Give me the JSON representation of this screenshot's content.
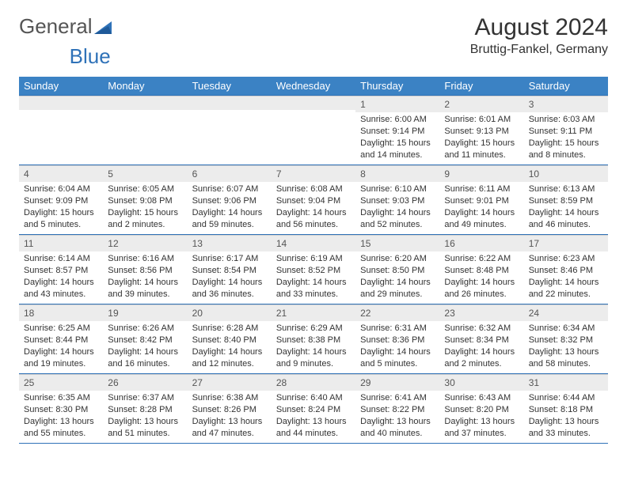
{
  "logo": {
    "text1": "General",
    "text2": "Blue"
  },
  "title": "August 2024",
  "location": "Bruttig-Fankel, Germany",
  "colors": {
    "header_bg": "#3b82c4",
    "header_text": "#ffffff",
    "daynum_bg": "#ececec",
    "border": "#2f72b8",
    "body_text": "#333333",
    "logo_gray": "#555555",
    "logo_blue": "#2f72b8"
  },
  "day_labels": [
    "Sunday",
    "Monday",
    "Tuesday",
    "Wednesday",
    "Thursday",
    "Friday",
    "Saturday"
  ],
  "weeks": [
    [
      {
        "n": "",
        "sr": "",
        "ss": "",
        "dl": ""
      },
      {
        "n": "",
        "sr": "",
        "ss": "",
        "dl": ""
      },
      {
        "n": "",
        "sr": "",
        "ss": "",
        "dl": ""
      },
      {
        "n": "",
        "sr": "",
        "ss": "",
        "dl": ""
      },
      {
        "n": "1",
        "sr": "Sunrise: 6:00 AM",
        "ss": "Sunset: 9:14 PM",
        "dl": "Daylight: 15 hours and 14 minutes."
      },
      {
        "n": "2",
        "sr": "Sunrise: 6:01 AM",
        "ss": "Sunset: 9:13 PM",
        "dl": "Daylight: 15 hours and 11 minutes."
      },
      {
        "n": "3",
        "sr": "Sunrise: 6:03 AM",
        "ss": "Sunset: 9:11 PM",
        "dl": "Daylight: 15 hours and 8 minutes."
      }
    ],
    [
      {
        "n": "4",
        "sr": "Sunrise: 6:04 AM",
        "ss": "Sunset: 9:09 PM",
        "dl": "Daylight: 15 hours and 5 minutes."
      },
      {
        "n": "5",
        "sr": "Sunrise: 6:05 AM",
        "ss": "Sunset: 9:08 PM",
        "dl": "Daylight: 15 hours and 2 minutes."
      },
      {
        "n": "6",
        "sr": "Sunrise: 6:07 AM",
        "ss": "Sunset: 9:06 PM",
        "dl": "Daylight: 14 hours and 59 minutes."
      },
      {
        "n": "7",
        "sr": "Sunrise: 6:08 AM",
        "ss": "Sunset: 9:04 PM",
        "dl": "Daylight: 14 hours and 56 minutes."
      },
      {
        "n": "8",
        "sr": "Sunrise: 6:10 AM",
        "ss": "Sunset: 9:03 PM",
        "dl": "Daylight: 14 hours and 52 minutes."
      },
      {
        "n": "9",
        "sr": "Sunrise: 6:11 AM",
        "ss": "Sunset: 9:01 PM",
        "dl": "Daylight: 14 hours and 49 minutes."
      },
      {
        "n": "10",
        "sr": "Sunrise: 6:13 AM",
        "ss": "Sunset: 8:59 PM",
        "dl": "Daylight: 14 hours and 46 minutes."
      }
    ],
    [
      {
        "n": "11",
        "sr": "Sunrise: 6:14 AM",
        "ss": "Sunset: 8:57 PM",
        "dl": "Daylight: 14 hours and 43 minutes."
      },
      {
        "n": "12",
        "sr": "Sunrise: 6:16 AM",
        "ss": "Sunset: 8:56 PM",
        "dl": "Daylight: 14 hours and 39 minutes."
      },
      {
        "n": "13",
        "sr": "Sunrise: 6:17 AM",
        "ss": "Sunset: 8:54 PM",
        "dl": "Daylight: 14 hours and 36 minutes."
      },
      {
        "n": "14",
        "sr": "Sunrise: 6:19 AM",
        "ss": "Sunset: 8:52 PM",
        "dl": "Daylight: 14 hours and 33 minutes."
      },
      {
        "n": "15",
        "sr": "Sunrise: 6:20 AM",
        "ss": "Sunset: 8:50 PM",
        "dl": "Daylight: 14 hours and 29 minutes."
      },
      {
        "n": "16",
        "sr": "Sunrise: 6:22 AM",
        "ss": "Sunset: 8:48 PM",
        "dl": "Daylight: 14 hours and 26 minutes."
      },
      {
        "n": "17",
        "sr": "Sunrise: 6:23 AM",
        "ss": "Sunset: 8:46 PM",
        "dl": "Daylight: 14 hours and 22 minutes."
      }
    ],
    [
      {
        "n": "18",
        "sr": "Sunrise: 6:25 AM",
        "ss": "Sunset: 8:44 PM",
        "dl": "Daylight: 14 hours and 19 minutes."
      },
      {
        "n": "19",
        "sr": "Sunrise: 6:26 AM",
        "ss": "Sunset: 8:42 PM",
        "dl": "Daylight: 14 hours and 16 minutes."
      },
      {
        "n": "20",
        "sr": "Sunrise: 6:28 AM",
        "ss": "Sunset: 8:40 PM",
        "dl": "Daylight: 14 hours and 12 minutes."
      },
      {
        "n": "21",
        "sr": "Sunrise: 6:29 AM",
        "ss": "Sunset: 8:38 PM",
        "dl": "Daylight: 14 hours and 9 minutes."
      },
      {
        "n": "22",
        "sr": "Sunrise: 6:31 AM",
        "ss": "Sunset: 8:36 PM",
        "dl": "Daylight: 14 hours and 5 minutes."
      },
      {
        "n": "23",
        "sr": "Sunrise: 6:32 AM",
        "ss": "Sunset: 8:34 PM",
        "dl": "Daylight: 14 hours and 2 minutes."
      },
      {
        "n": "24",
        "sr": "Sunrise: 6:34 AM",
        "ss": "Sunset: 8:32 PM",
        "dl": "Daylight: 13 hours and 58 minutes."
      }
    ],
    [
      {
        "n": "25",
        "sr": "Sunrise: 6:35 AM",
        "ss": "Sunset: 8:30 PM",
        "dl": "Daylight: 13 hours and 55 minutes."
      },
      {
        "n": "26",
        "sr": "Sunrise: 6:37 AM",
        "ss": "Sunset: 8:28 PM",
        "dl": "Daylight: 13 hours and 51 minutes."
      },
      {
        "n": "27",
        "sr": "Sunrise: 6:38 AM",
        "ss": "Sunset: 8:26 PM",
        "dl": "Daylight: 13 hours and 47 minutes."
      },
      {
        "n": "28",
        "sr": "Sunrise: 6:40 AM",
        "ss": "Sunset: 8:24 PM",
        "dl": "Daylight: 13 hours and 44 minutes."
      },
      {
        "n": "29",
        "sr": "Sunrise: 6:41 AM",
        "ss": "Sunset: 8:22 PM",
        "dl": "Daylight: 13 hours and 40 minutes."
      },
      {
        "n": "30",
        "sr": "Sunrise: 6:43 AM",
        "ss": "Sunset: 8:20 PM",
        "dl": "Daylight: 13 hours and 37 minutes."
      },
      {
        "n": "31",
        "sr": "Sunrise: 6:44 AM",
        "ss": "Sunset: 8:18 PM",
        "dl": "Daylight: 13 hours and 33 minutes."
      }
    ]
  ]
}
